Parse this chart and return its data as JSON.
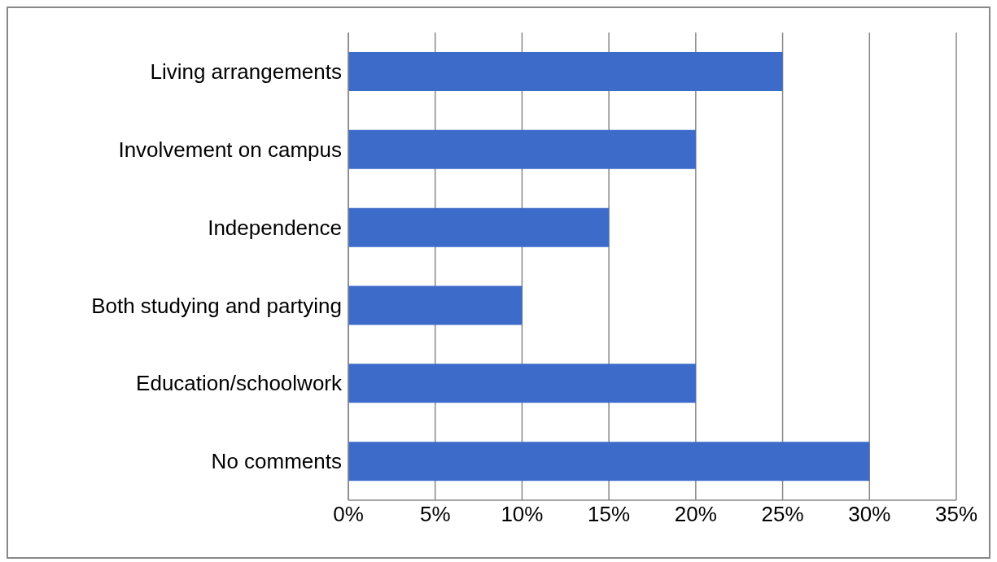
{
  "chart_data": {
    "type": "bar",
    "orientation": "horizontal",
    "categories": [
      "Living arrangements",
      "Involvement on campus",
      "Independence",
      "Both studying and partying",
      "Education/schoolwork",
      "No comments"
    ],
    "values": [
      25,
      20,
      15,
      10,
      20,
      30
    ],
    "color": "#3c6bc9",
    "xlim": [
      0,
      35
    ],
    "xticks": [
      {
        "value": 0,
        "label": "0%"
      },
      {
        "value": 5,
        "label": "5%"
      },
      {
        "value": 10,
        "label": "10%"
      },
      {
        "value": 15,
        "label": "15%"
      },
      {
        "value": 20,
        "label": "20%"
      },
      {
        "value": 25,
        "label": "25%"
      },
      {
        "value": 30,
        "label": "30%"
      },
      {
        "value": 35,
        "label": "35%"
      }
    ],
    "grid": "x",
    "legend": false
  }
}
